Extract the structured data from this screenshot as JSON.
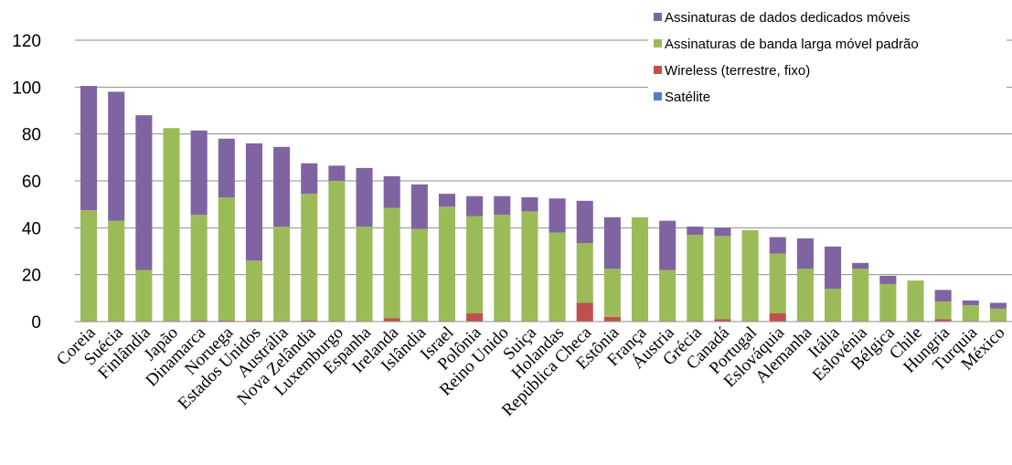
{
  "chart_data": {
    "type": "bar",
    "stacked": true,
    "categories": [
      "Coreia",
      "Suécia",
      "Finlândia",
      "Japão",
      "Dinamarca",
      "Noruega",
      "Estados Unidos",
      "Austrália",
      "Nova Zelândia",
      "Luxemburgo",
      "Espanha",
      "Irelanda",
      "Islândia",
      "Israel",
      "Polônia",
      "Reino Unido",
      "Suiça",
      "Holandas",
      "República Checa",
      "Estônia",
      "França",
      "Áustria",
      "Grécia",
      "Canadá",
      "Portugal",
      "Eslováquia",
      "Alemanha",
      "Itália",
      "Eslovénia",
      "Bélgica",
      "Chile",
      "Hungria",
      "Turquia",
      "México"
    ],
    "series": [
      {
        "name": "Satélite",
        "color": "#4f81bd",
        "values": [
          0,
          0,
          0,
          0,
          0,
          0,
          0,
          0,
          0,
          0,
          0,
          0,
          0,
          0,
          0,
          0,
          0,
          0,
          0,
          0,
          0,
          0,
          0,
          0,
          0,
          0,
          0,
          0,
          0,
          0,
          0,
          0,
          0,
          0
        ]
      },
      {
        "name": "Wireless (terrestre, fixo)",
        "color": "#c0504d",
        "values": [
          0,
          0,
          0,
          0,
          0.5,
          0.5,
          0.5,
          0,
          0.5,
          0,
          0,
          1.5,
          0,
          0,
          3.5,
          0,
          0,
          0,
          8,
          2,
          0,
          0,
          0,
          1,
          0,
          3.5,
          0,
          0,
          0,
          0,
          0,
          1,
          0,
          0
        ]
      },
      {
        "name": "Assinaturas de banda larga móvel padrão",
        "color": "#9bbb59",
        "values": [
          47.5,
          43,
          22,
          82.5,
          45,
          52.5,
          25.5,
          40.5,
          54,
          60,
          40.5,
          47,
          39.5,
          49,
          41.5,
          45.5,
          47,
          38,
          25.5,
          20.5,
          44.5,
          22,
          37,
          35.5,
          39,
          25.5,
          22.5,
          14,
          22.5,
          16,
          17.5,
          7.5,
          7,
          5.5
        ]
      },
      {
        "name": "Assinaturas de dados dedicados móveis",
        "color": "#8064a2",
        "values": [
          53,
          55,
          66,
          0,
          36,
          25,
          50,
          34,
          13,
          6.5,
          25,
          13.5,
          19,
          5.5,
          8.5,
          8,
          6,
          14.5,
          18,
          22,
          0,
          21,
          3.5,
          3.5,
          0,
          7,
          13,
          18,
          2.5,
          3.5,
          0,
          5,
          2,
          2.5
        ]
      }
    ],
    "ylim": [
      0,
      120
    ],
    "yticks": [
      "0",
      "20",
      "40",
      "60",
      "80",
      "100",
      "120"
    ],
    "gridlines": true,
    "legend_position": "top-right",
    "legend_items": [
      {
        "label": "Assinaturas de dados dedicados móveis",
        "color": "#8064a2"
      },
      {
        "label": "Assinaturas de banda larga móvel padrão",
        "color": "#9bbb59"
      },
      {
        "label": "Wireless (terrestre, fixo)",
        "color": "#c0504d"
      },
      {
        "label": "Satélite",
        "color": "#4f81bd"
      }
    ]
  }
}
